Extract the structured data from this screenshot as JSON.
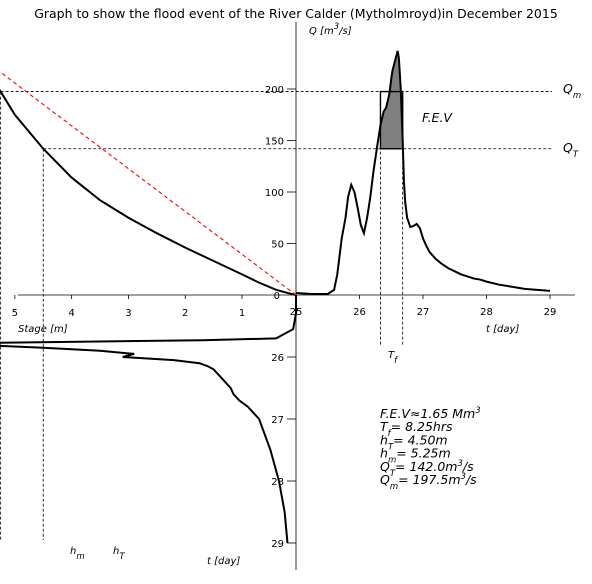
{
  "chart_data": {
    "type": "line",
    "title": "Graph to show the flood event of the River Calder (Mytholmroyd)in December 2015",
    "hydrograph": {
      "xlabel": "t [day]",
      "ylabel_html": [
        "Q [m",
        "3",
        "/s]"
      ],
      "xlim": [
        25,
        29.4
      ],
      "ylim": [
        0,
        255
      ],
      "xticks": [
        "25",
        "26",
        "27",
        "28",
        "29"
      ],
      "yticks": [
        "0",
        "50",
        "100",
        "150",
        "200"
      ],
      "x": [
        25.0,
        25.25,
        25.5,
        25.6,
        25.65,
        25.72,
        25.78,
        25.82,
        25.87,
        25.92,
        25.97,
        26.02,
        26.07,
        26.12,
        26.17,
        26.22,
        26.28,
        26.33,
        26.38,
        26.42,
        26.47,
        26.5,
        26.52,
        26.55,
        26.58,
        26.6,
        26.62,
        26.65,
        26.68,
        26.7,
        26.72,
        26.75,
        26.8,
        26.85,
        26.9,
        26.95,
        27.0,
        27.05,
        27.1,
        27.2,
        27.3,
        27.4,
        27.5,
        27.6,
        27.7,
        27.8,
        27.9,
        28.0,
        28.2,
        28.4,
        28.6,
        28.8,
        29.0
      ],
      "y": [
        2,
        1,
        1,
        5,
        20,
        55,
        75,
        95,
        107,
        100,
        85,
        68,
        60,
        75,
        95,
        120,
        145,
        165,
        178,
        182,
        195,
        210,
        218,
        225,
        232,
        237,
        230,
        200,
        150,
        110,
        90,
        75,
        66,
        67,
        69,
        65,
        55,
        48,
        42,
        35,
        30,
        26,
        23,
        20,
        18,
        16,
        15,
        13,
        10,
        8,
        6,
        5,
        4
      ]
    },
    "rating_curve": {
      "xlabel": "Stage [m]",
      "xticks": [
        "5",
        "4",
        "3",
        "2",
        "1"
      ],
      "stage": [
        0.05,
        0.2,
        0.4,
        0.7,
        1.0,
        1.5,
        2.0,
        2.5,
        3.0,
        3.5,
        4.0,
        4.5,
        5.0,
        5.25,
        5.5,
        5.75
      ],
      "Q": [
        0.0,
        2,
        5,
        12,
        20,
        33,
        46,
        60,
        75,
        92,
        114,
        142,
        175,
        197.5,
        218,
        237
      ],
      "linear_reference": "red dashed"
    },
    "stage_hydrograph": {
      "xlabel": "t [day]",
      "yticks": [
        "26",
        "27",
        "28",
        "29"
      ],
      "t": [
        25.0,
        25.3,
        25.55,
        25.7,
        25.73,
        25.77,
        25.8,
        25.85,
        25.9,
        25.95,
        26.0,
        26.05,
        26.1,
        26.15,
        26.2,
        26.3,
        26.4,
        26.5,
        26.6,
        26.7,
        26.8,
        26.9,
        27.0,
        27.5,
        28.0,
        28.5,
        29.0
      ],
      "stage": [
        0.05,
        0.05,
        0.1,
        0.4,
        1.7,
        5.3,
        5.8,
        4.5,
        3.5,
        2.9,
        3.1,
        2.2,
        1.75,
        1.6,
        1.5,
        1.4,
        1.3,
        1.2,
        1.15,
        1.05,
        0.9,
        0.8,
        0.7,
        0.5,
        0.35,
        0.25,
        0.2
      ]
    },
    "annotations": {
      "fev_label": "F.E.V",
      "qm_label": "Q",
      "qm_sub": "m",
      "qt_label": "Q",
      "qt_sub": "T",
      "tf_label": "T",
      "tf_sub": "f",
      "hm_label": "h",
      "hm_sub": "m",
      "ht_label": "h",
      "ht_sub": "T",
      "origin_label": "0",
      "stats": [
        {
          "text": "F.E.V≈1.65 Mm",
          "sup": "3",
          "tail": ""
        },
        {
          "text": "T",
          "sub": "f",
          "tail": "= 8.25hrs"
        },
        {
          "text": "h",
          "sub": "T",
          "tail": "= 4.50m"
        },
        {
          "text": "h",
          "sub": "m",
          "tail": "= 5.25m"
        },
        {
          "text": "Q",
          "sub": "T",
          "tail": "= 142.0m",
          "sup": "3",
          "tail2": "/s"
        },
        {
          "text": "Q",
          "sub": "m",
          "tail": "= 197.5m",
          "sup": "3",
          "tail2": "/s"
        }
      ]
    },
    "thresholds": {
      "QT": 142.0,
      "Qm": 197.5,
      "hT": 4.5,
      "hm": 5.25,
      "t_start": 26.33,
      "t_end": 26.68
    },
    "colors": {
      "curve": "#000000",
      "reference": "#ff0000",
      "fill": "#808080"
    }
  }
}
